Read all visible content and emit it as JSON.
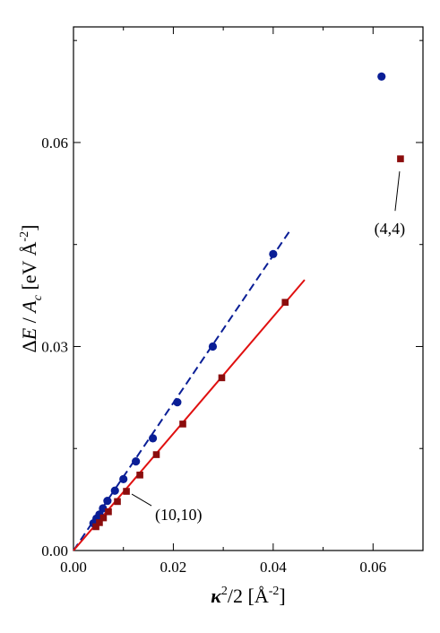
{
  "chart_data": {
    "type": "scatter",
    "xlabel": "κ²/2  [Å⁻²]",
    "ylabel": "ΔE / A_c [eV Å⁻²]",
    "xlim": [
      0.0,
      0.07
    ],
    "ylim": [
      0.0,
      0.077
    ],
    "x_ticks": [
      "0.00",
      "0.02",
      "0.04",
      "0.06"
    ],
    "y_ticks": [
      "0.00",
      "0.03",
      "0.06"
    ],
    "grid": false,
    "colors": {
      "blue": "#0a1e96",
      "red": "#e01010",
      "darkred": "#8b0d0d"
    },
    "series": [
      {
        "marker": "circle",
        "color": "#0a1e96",
        "points": [
          [
            0.004,
            0.004
          ],
          [
            0.0046,
            0.0047
          ],
          [
            0.0052,
            0.0053
          ],
          [
            0.0059,
            0.0062
          ],
          [
            0.0068,
            0.0073
          ],
          [
            0.0083,
            0.0088
          ],
          [
            0.01,
            0.0105
          ],
          [
            0.0125,
            0.0131
          ],
          [
            0.0159,
            0.0165
          ],
          [
            0.0208,
            0.0218
          ],
          [
            0.0279,
            0.03
          ],
          [
            0.04,
            0.0436
          ],
          [
            0.0617,
            0.0697
          ]
        ]
      },
      {
        "marker": "square",
        "color": "#8b0d0d",
        "points": [
          [
            0.0045,
            0.0035
          ],
          [
            0.0052,
            0.0041
          ],
          [
            0.006,
            0.0048
          ],
          [
            0.007,
            0.0057
          ],
          [
            0.0088,
            0.0072
          ],
          [
            0.0106,
            0.0087
          ],
          [
            0.0133,
            0.0111
          ],
          [
            0.0166,
            0.0141
          ],
          [
            0.0219,
            0.0186
          ],
          [
            0.0297,
            0.0254
          ],
          [
            0.0424,
            0.0365
          ],
          [
            0.0655,
            0.0576
          ]
        ]
      }
    ],
    "fit_lines": [
      {
        "style": "dashed",
        "color": "#0a1e96",
        "x": [
          0.0,
          0.0435
        ],
        "y": [
          0.0,
          0.0472
        ]
      },
      {
        "style": "solid",
        "color": "#e01010",
        "x": [
          0.0,
          0.0463
        ],
        "y": [
          0.0,
          0.0398
        ]
      }
    ],
    "annotations": [
      {
        "text": "(4,4)",
        "x": 0.0655,
        "y": 0.0576
      },
      {
        "text": "(10,10)",
        "x": 0.0106,
        "y": 0.0087
      }
    ]
  }
}
